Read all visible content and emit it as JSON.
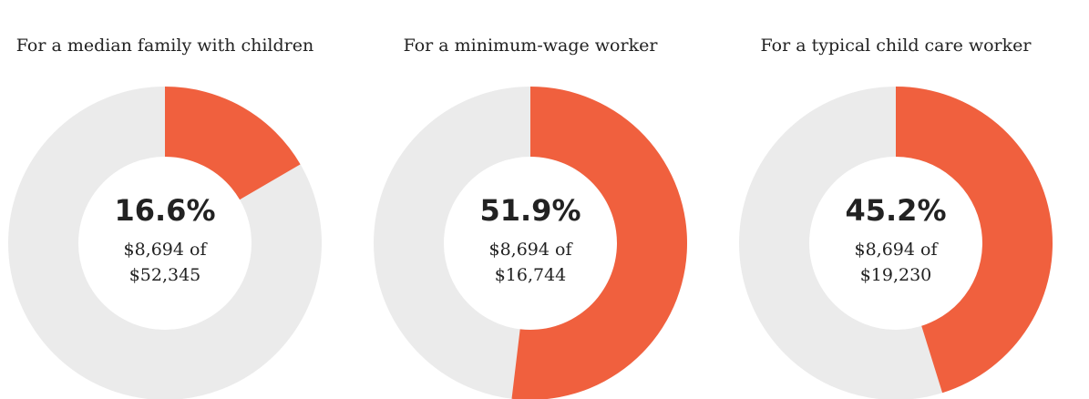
{
  "chart_data": [
    {
      "type": "donut",
      "title": "For a median family with children",
      "values": [
        16.6
      ],
      "value_labels": [
        "16.6%"
      ],
      "annotations": [
        "$8,694 of",
        "$52,345"
      ],
      "color": "#f0603e",
      "track_color": "#ebebeb"
    },
    {
      "type": "donut",
      "title": "For a minimum-wage worker",
      "values": [
        51.9
      ],
      "value_labels": [
        "51.9%"
      ],
      "annotations": [
        "$8,694 of",
        "$16,744"
      ],
      "color": "#f0603e",
      "track_color": "#ebebeb"
    },
    {
      "type": "donut",
      "title": "For a typical child care worker",
      "values": [
        45.2
      ],
      "value_labels": [
        "45.2%"
      ],
      "annotations": [
        "$8,694 of",
        "$19,230"
      ],
      "color": "#f0603e",
      "track_color": "#ebebeb"
    }
  ]
}
